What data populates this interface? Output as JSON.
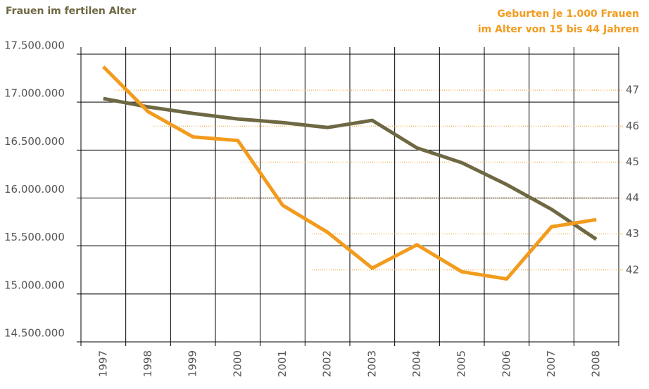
{
  "chart_data": {
    "type": "line",
    "ylabel": "Frauen im fertilen Alter",
    "y2label": [
      "Geburten je 1.000 Frauen",
      "im Alter von 15 bis 44 Jahren"
    ],
    "categories": [
      "1997",
      "1998",
      "1999",
      "2000",
      "2001",
      "2002",
      "2003",
      "2004",
      "2005",
      "2006",
      "2007",
      "2008"
    ],
    "ylim": [
      14500000,
      17500000
    ],
    "yticks": [
      {
        "value": 14500000,
        "label": "14.500.000"
      },
      {
        "value": 15000000,
        "label": "15.000.000"
      },
      {
        "value": 15500000,
        "label": "15.500.000"
      },
      {
        "value": 16000000,
        "label": "16.000.000"
      },
      {
        "value": 16500000,
        "label": "16.500.000"
      },
      {
        "value": 17000000,
        "label": "17.000.000"
      },
      {
        "value": 17500000,
        "label": "17.500.000"
      }
    ],
    "y2lim": [
      40,
      48
    ],
    "y2ticks": [
      42,
      43,
      44,
      45,
      46,
      47
    ],
    "grid": true,
    "series": [
      {
        "color": "#6e6843",
        "values": [
          17037000,
          16950000,
          16882000,
          16824000,
          16787000,
          16735000,
          16810000,
          16522000,
          16368000,
          16140000,
          15882000,
          15570000
        ]
      },
      {
        "color": "#f29b1d",
        "axis": "y2",
        "values": [
          47.65,
          46.4,
          45.7,
          45.6,
          43.8,
          43.05,
          42.05,
          42.7,
          41.95,
          41.75,
          43.2,
          43.4
        ]
      }
    ]
  }
}
